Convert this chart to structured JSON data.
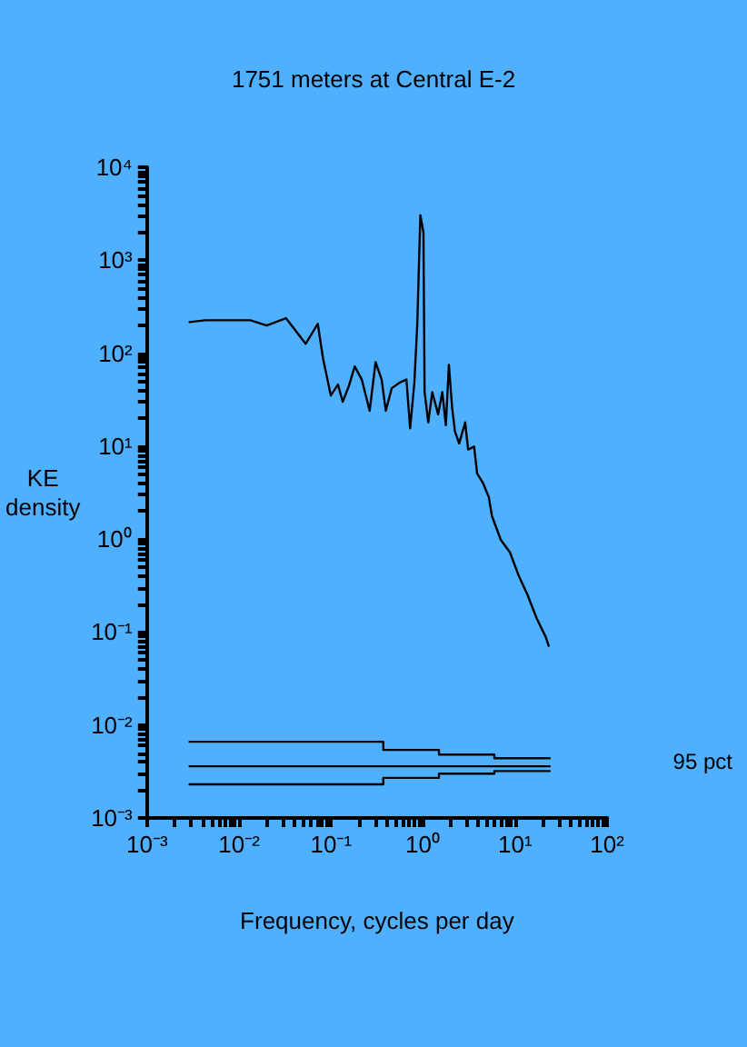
{
  "chart_data": {
    "type": "line",
    "title": "1751 meters at Central E-2",
    "xlabel": "Frequency, cycles per day",
    "ylabel": "KE\ndensity",
    "log": "xy",
    "grid": false,
    "marker": "none",
    "line_style": "solid",
    "xlim": [
      0.001,
      100
    ],
    "ylim": [
      0.001,
      10000
    ],
    "xticks": [
      {
        "value": 0.001,
        "label": "10⁻³"
      },
      {
        "value": 0.01,
        "label": "10⁻²"
      },
      {
        "value": 0.1,
        "label": "10⁻¹"
      },
      {
        "value": 1,
        "label": "10⁰"
      },
      {
        "value": 10,
        "label": "10¹"
      },
      {
        "value": 100,
        "label": "10²"
      }
    ],
    "yticks": [
      {
        "value": 0.001,
        "label": "10⁻³"
      },
      {
        "value": 0.01,
        "label": "10⁻²"
      },
      {
        "value": 0.1,
        "label": "10⁻¹"
      },
      {
        "value": 1,
        "label": "10⁰"
      },
      {
        "value": 10,
        "label": "10¹"
      },
      {
        "value": 100,
        "label": "10²"
      },
      {
        "value": 1000,
        "label": "10³"
      },
      {
        "value": 10000,
        "label": "10⁴"
      }
    ],
    "annotations": [
      "95 pct"
    ],
    "series": [
      {
        "color": "#000000",
        "x": [
          0.0029,
          0.0043,
          0.0133,
          0.02,
          0.0325,
          0.053,
          0.0718,
          0.082,
          0.0995,
          0.119,
          0.134,
          0.156,
          0.181,
          0.216,
          0.263,
          0.305,
          0.355,
          0.394,
          0.457,
          0.553,
          0.66,
          0.724,
          0.805,
          0.867,
          0.935,
          1.01,
          1.04,
          1.14,
          1.26,
          1.46,
          1.62,
          1.77,
          1.91,
          2.07,
          2.22,
          2.47,
          2.87,
          3.09,
          3.59,
          3.87,
          4.49,
          5.2,
          5.6,
          7.0,
          8.8,
          11,
          13.7,
          17.2,
          21.5,
          23.2
        ],
        "values": [
          216,
          226,
          226,
          198,
          237,
          126,
          207,
          87,
          35,
          46,
          30,
          44,
          72,
          52,
          24,
          80,
          52,
          24,
          42,
          48,
          52,
          15.5,
          48,
          213,
          3050,
          2000,
          38,
          18,
          38,
          22,
          38,
          16.8,
          75,
          26,
          14.4,
          10.7,
          18,
          9.2,
          9.9,
          5.1,
          4.0,
          2.8,
          1.78,
          0.98,
          0.72,
          0.4,
          0.25,
          0.14,
          0.089,
          0.071
        ]
      },
      {
        "type": "step",
        "color": "#000000",
        "x": [
          0.0029,
          0.37,
          1.49,
          5.96,
          23.8
        ],
        "values": [
          0.0066,
          0.0054,
          0.0048,
          0.0044,
          0.0044
        ]
      },
      {
        "type": "step",
        "color": "#000000",
        "x": [
          0.0029,
          23.8
        ],
        "values": [
          0.0036,
          0.0036
        ]
      },
      {
        "type": "step",
        "color": "#000000",
        "x": [
          0.0029,
          0.37,
          1.49,
          5.96,
          23.8
        ],
        "values": [
          0.0023,
          0.0027,
          0.003,
          0.0032,
          0.0032
        ]
      }
    ]
  }
}
